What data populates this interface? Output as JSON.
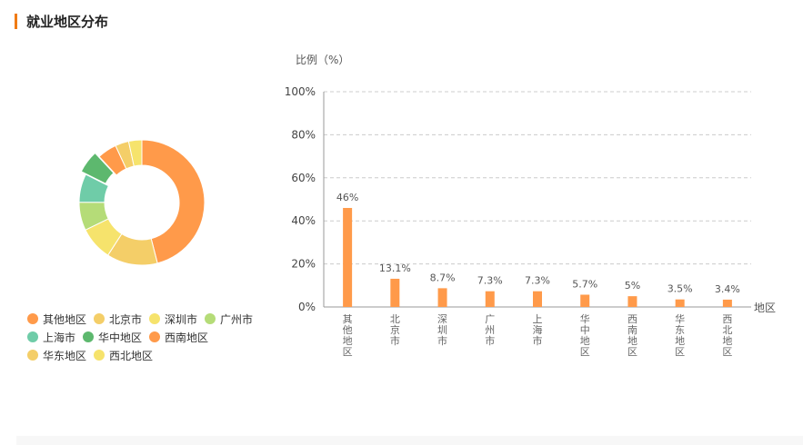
{
  "page": {
    "title": "就业地区分布"
  },
  "chart_data": [
    {
      "type": "pie",
      "variant": "donut",
      "categories": [
        "其他地区",
        "北京市",
        "深圳市",
        "广州市",
        "上海市",
        "华中地区",
        "西南地区",
        "华东地区",
        "西北地区"
      ],
      "values": [
        46,
        13.1,
        8.7,
        7.3,
        7.3,
        5.7,
        5,
        3.5,
        3.4
      ],
      "colors": [
        "#ff9a4a",
        "#f4ce68",
        "#f6e36c",
        "#b5dc78",
        "#6fcca8",
        "#5db86e",
        "#ff9a4a",
        "#f4ce68",
        "#f6e36c"
      ],
      "legend": "bottom-left"
    },
    {
      "type": "bar",
      "categories": [
        "其他地区",
        "北京市",
        "深圳市",
        "广州市",
        "上海市",
        "华中地区",
        "西南地区",
        "华东地区",
        "西北地区"
      ],
      "values": [
        46,
        13.1,
        8.7,
        7.3,
        7.3,
        5.7,
        5,
        3.5,
        3.4
      ],
      "value_labels": [
        "46%",
        "13.1%",
        "8.7%",
        "7.3%",
        "7.3%",
        "5.7%",
        "5%",
        "3.5%",
        "3.4%"
      ],
      "ylabel": "比例（%）",
      "xlabel": "地区",
      "ylim": [
        0,
        100
      ],
      "yticks": [
        "0%",
        "20%",
        "40%",
        "60%",
        "80%",
        "100%"
      ],
      "bar_color": "#ff9a4a",
      "grid": true
    }
  ]
}
